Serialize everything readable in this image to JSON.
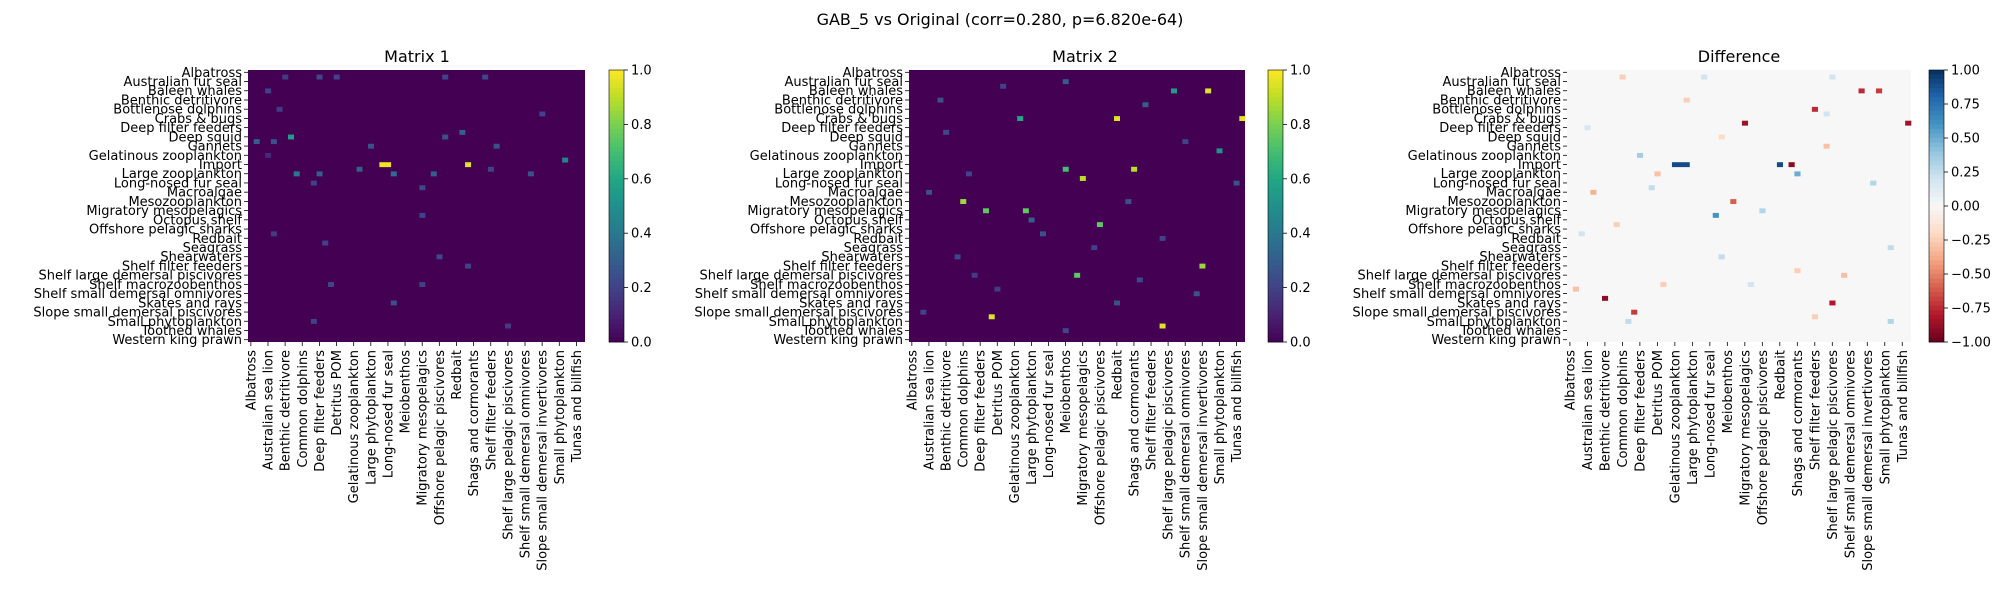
{
  "figure": {
    "suptitle": "GAB_5 vs Original (corr=0.280, p=6.820e-64)"
  },
  "row_labels": [
    "Albatross",
    "Australian fur seal",
    "Baleen whales",
    "Benthic detritivore",
    "Bottlenose dolphins",
    "Crabs & bugs",
    "Deep filter feeders",
    "Deep squid",
    "Gannets",
    "Gelatinous zooplankton",
    "Import",
    "Large zooplankton",
    "Long-nosed fur seal",
    "Macroalgae",
    "Mesozooplankton",
    "Migratory mesopelagics",
    "Octopus shelf",
    "Offshore pelagic sharks",
    "Redbait",
    "Seagrass",
    "Shearwaters",
    "Shelf filter feeders",
    "Shelf large demersal piscivores",
    "Shelf macrozoobenthos",
    "Shelf small demersal omnivores",
    "Skates and rays",
    "Slope small demersal piscivores",
    "Small phytoplankton",
    "Toothed whales",
    "Western king prawn"
  ],
  "col_labels": [
    "Albatross",
    "Australian sea lion",
    "Benthic detritivore",
    "Common dolphins",
    "Deep filter feeders",
    "Detritus POM",
    "Gelatinous zooplankton",
    "Large phytoplankton",
    "Long-nosed fur seal",
    "Meiobenthos",
    "Migratory mesopelagics",
    "Offshore pelagic piscivores",
    "Redbait",
    "Shags and cormorants",
    "Shelf filter feeders",
    "Shelf large pelagic piscivores",
    "Shelf small demersal omnivores",
    "Slope small demersal invertivores",
    "Small phytoplankton",
    "Tunas and billfish"
  ],
  "panels": [
    {
      "title": "Matrix 1",
      "colormap": "viridis",
      "vmin": 0,
      "vmax": 1,
      "ticks": [
        "0.0",
        "0.2",
        "0.4",
        "0.6",
        "0.8",
        "1.0"
      ],
      "tick_values": [
        0,
        0.2,
        0.4,
        0.6,
        0.8,
        1.0
      ]
    },
    {
      "title": "Matrix 2",
      "colormap": "viridis",
      "vmin": 0,
      "vmax": 1,
      "ticks": [
        "0.0",
        "0.2",
        "0.4",
        "0.6",
        "0.8",
        "1.0"
      ],
      "tick_values": [
        0,
        0.2,
        0.4,
        0.6,
        0.8,
        1.0
      ]
    },
    {
      "title": "Difference",
      "colormap": "RdBu",
      "vmin": -1,
      "vmax": 1,
      "ticks": [
        "−1.00",
        "−0.75",
        "−0.50",
        "−0.25",
        "0.00",
        "0.25",
        "0.50",
        "0.75",
        "1.00"
      ],
      "tick_values": [
        -1,
        -0.75,
        -0.5,
        -0.25,
        0,
        0.25,
        0.5,
        0.75,
        1.0
      ]
    }
  ],
  "chart_data": {
    "type": "heatmap",
    "title": "GAB_5 vs Original (corr=0.280, p=6.820e-64)",
    "rows": 59,
    "cols": 59,
    "background_value": 0.0,
    "row_tick_every": 2,
    "col_tick_every": 3,
    "matrices": [
      {
        "name": "Matrix 1",
        "cells": [
          [
            20,
            23,
            0.98
          ],
          [
            20,
            24,
            0.98
          ],
          [
            20,
            38,
            0.95
          ],
          [
            18,
            3,
            0.12
          ],
          [
            14,
            7,
            0.55
          ],
          [
            22,
            8,
            0.4
          ],
          [
            22,
            12,
            0.3
          ],
          [
            22,
            25,
            0.35
          ],
          [
            22,
            32,
            0.3
          ],
          [
            14,
            34,
            0.25
          ],
          [
            13,
            37,
            0.3
          ],
          [
            21,
            42,
            0.2
          ],
          [
            22,
            49,
            0.25
          ],
          [
            19,
            55,
            0.45
          ],
          [
            21,
            19,
            0.3
          ],
          [
            1,
            6,
            0.18
          ],
          [
            1,
            12,
            0.22
          ],
          [
            1,
            15,
            0.2
          ],
          [
            1,
            34,
            0.2
          ],
          [
            1,
            41,
            0.22
          ],
          [
            4,
            3,
            0.2
          ],
          [
            8,
            5,
            0.18
          ],
          [
            9,
            51,
            0.2
          ],
          [
            15,
            1,
            0.3
          ],
          [
            15,
            4,
            0.25
          ],
          [
            16,
            21,
            0.25
          ],
          [
            16,
            43,
            0.25
          ],
          [
            24,
            11,
            0.2
          ],
          [
            25,
            30,
            0.22
          ],
          [
            31,
            30,
            0.2
          ],
          [
            35,
            4,
            0.18
          ],
          [
            37,
            13,
            0.2
          ],
          [
            40,
            33,
            0.22
          ],
          [
            42,
            38,
            0.2
          ],
          [
            46,
            14,
            0.22
          ],
          [
            46,
            30,
            0.2
          ],
          [
            50,
            25,
            0.25
          ],
          [
            54,
            11,
            0.2
          ],
          [
            55,
            45,
            0.18
          ]
        ]
      },
      {
        "name": "Matrix 2",
        "cells": [
          [
            4,
            52,
            0.95
          ],
          [
            10,
            36,
            0.95
          ],
          [
            10,
            58,
            0.95
          ],
          [
            21,
            39,
            0.9
          ],
          [
            23,
            30,
            0.9
          ],
          [
            30,
            13,
            0.75
          ],
          [
            30,
            20,
            0.75
          ],
          [
            42,
            51,
            0.85
          ],
          [
            53,
            14,
            0.95
          ],
          [
            55,
            44,
            0.95
          ],
          [
            28,
            9,
            0.85
          ],
          [
            33,
            33,
            0.75
          ],
          [
            21,
            27,
            0.7
          ],
          [
            10,
            19,
            0.6
          ],
          [
            44,
            29,
            0.75
          ],
          [
            4,
            46,
            0.55
          ],
          [
            17,
            54,
            0.5
          ],
          [
            2,
            27,
            0.3
          ],
          [
            6,
            5,
            0.25
          ],
          [
            7,
            41,
            0.3
          ],
          [
            22,
            10,
            0.2
          ],
          [
            26,
            3,
            0.25
          ],
          [
            28,
            38,
            0.25
          ],
          [
            32,
            21,
            0.3
          ],
          [
            35,
            23,
            0.25
          ],
          [
            38,
            32,
            0.2
          ],
          [
            40,
            8,
            0.22
          ],
          [
            45,
            40,
            0.22
          ],
          [
            47,
            15,
            0.18
          ],
          [
            50,
            36,
            0.25
          ],
          [
            52,
            2,
            0.2
          ],
          [
            56,
            27,
            0.22
          ],
          [
            3,
            16,
            0.2
          ],
          [
            13,
            6,
            0.22
          ],
          [
            15,
            48,
            0.2
          ],
          [
            24,
            57,
            0.25
          ],
          [
            36,
            44,
            0.2
          ],
          [
            44,
            11,
            0.18
          ],
          [
            48,
            50,
            0.25
          ]
        ]
      },
      {
        "name": "Difference",
        "cells": [
          [
            20,
            18,
            0.9
          ],
          [
            20,
            19,
            0.9
          ],
          [
            20,
            20,
            0.9
          ],
          [
            20,
            36,
            0.9
          ],
          [
            20,
            38,
            -0.9
          ],
          [
            49,
            6,
            -0.9
          ],
          [
            52,
            11,
            -0.7
          ],
          [
            50,
            45,
            -0.8
          ],
          [
            11,
            30,
            -0.85
          ],
          [
            11,
            58,
            -0.85
          ],
          [
            8,
            42,
            -0.75
          ],
          [
            4,
            50,
            -0.75
          ],
          [
            4,
            53,
            -0.7
          ],
          [
            31,
            25,
            0.6
          ],
          [
            28,
            28,
            -0.6
          ],
          [
            22,
            39,
            0.5
          ],
          [
            18,
            12,
            0.35
          ],
          [
            26,
            4,
            -0.35
          ],
          [
            22,
            15,
            -0.3
          ],
          [
            40,
            26,
            0.25
          ],
          [
            43,
            39,
            -0.25
          ],
          [
            1,
            9,
            -0.25
          ],
          [
            1,
            23,
            0.2
          ],
          [
            1,
            45,
            0.2
          ],
          [
            6,
            20,
            -0.25
          ],
          [
            16,
            44,
            -0.3
          ],
          [
            24,
            52,
            0.3
          ],
          [
            33,
            8,
            -0.25
          ],
          [
            35,
            2,
            0.2
          ],
          [
            38,
            55,
            0.25
          ],
          [
            44,
            47,
            -0.3
          ],
          [
            46,
            16,
            -0.25
          ],
          [
            46,
            31,
            0.2
          ],
          [
            47,
            1,
            -0.3
          ],
          [
            53,
            42,
            -0.25
          ],
          [
            54,
            10,
            0.25
          ],
          [
            54,
            55,
            0.3
          ],
          [
            25,
            14,
            0.25
          ],
          [
            30,
            33,
            0.3
          ],
          [
            9,
            44,
            0.2
          ],
          [
            14,
            26,
            -0.2
          ],
          [
            12,
            3,
            0.18
          ]
        ]
      }
    ]
  }
}
